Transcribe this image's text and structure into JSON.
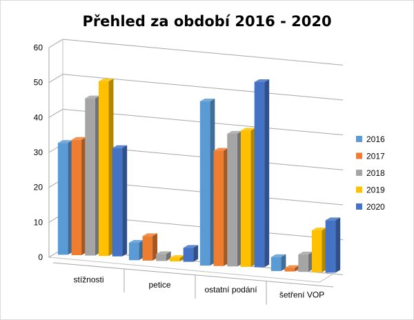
{
  "chart_data": {
    "type": "bar",
    "title": "Přehled za období 2016 - 2020",
    "xlabel": "",
    "ylabel": "",
    "ylim": [
      0,
      60
    ],
    "yticks": [
      0,
      10,
      20,
      30,
      40,
      50,
      60
    ],
    "categories": [
      "stížnosti",
      "petice",
      "ostatní podání",
      "šetření VOP"
    ],
    "series": [
      {
        "name": "2016",
        "color": "#5b9bd5",
        "values": [
          32,
          5,
          47,
          4
        ]
      },
      {
        "name": "2017",
        "color": "#ed7d31",
        "values": [
          33,
          7,
          33,
          1
        ]
      },
      {
        "name": "2018",
        "color": "#a5a5a5",
        "values": [
          45,
          2,
          38,
          5
        ]
      },
      {
        "name": "2019",
        "color": "#ffc000",
        "values": [
          50,
          1,
          39,
          12
        ]
      },
      {
        "name": "2020",
        "color": "#4472c4",
        "values": [
          31,
          4,
          53,
          15
        ]
      }
    ],
    "grid": true,
    "legend": "right",
    "style": "3d-clustered-column"
  }
}
